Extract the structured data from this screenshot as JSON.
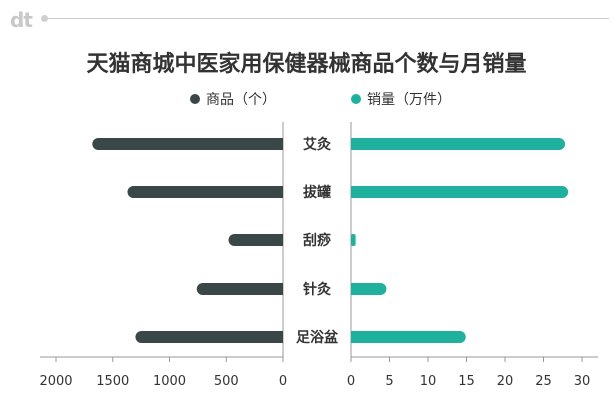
{
  "brand": {
    "logo_text": "dt"
  },
  "colors": {
    "left_series": "#3a4749",
    "right_series": "#1fb09e",
    "axis": "#999999",
    "text": "#333333"
  },
  "chart_data": {
    "type": "bar",
    "orientation": "horizontal-butterfly",
    "title": "天猫商城中医家用保健器械商品个数与月销量",
    "categories": [
      "艾灸",
      "拔罐",
      "刮痧",
      "针灸",
      "足浴盆"
    ],
    "series": [
      {
        "name": "商品（个）",
        "side": "left",
        "values": [
          1680,
          1370,
          480,
          760,
          1300
        ]
      },
      {
        "name": "销量（万件）",
        "side": "right",
        "values": [
          27.8,
          28.2,
          0.6,
          4.6,
          14.9
        ]
      }
    ],
    "left_axis": {
      "ticks": [
        "2000",
        "1500",
        "1000",
        "500",
        "0"
      ],
      "range": [
        0,
        2000
      ]
    },
    "right_axis": {
      "ticks": [
        "0",
        "5",
        "10",
        "15",
        "20",
        "25",
        "30"
      ],
      "range": [
        0,
        30
      ]
    },
    "legend_position": "top-center",
    "grid": false
  }
}
